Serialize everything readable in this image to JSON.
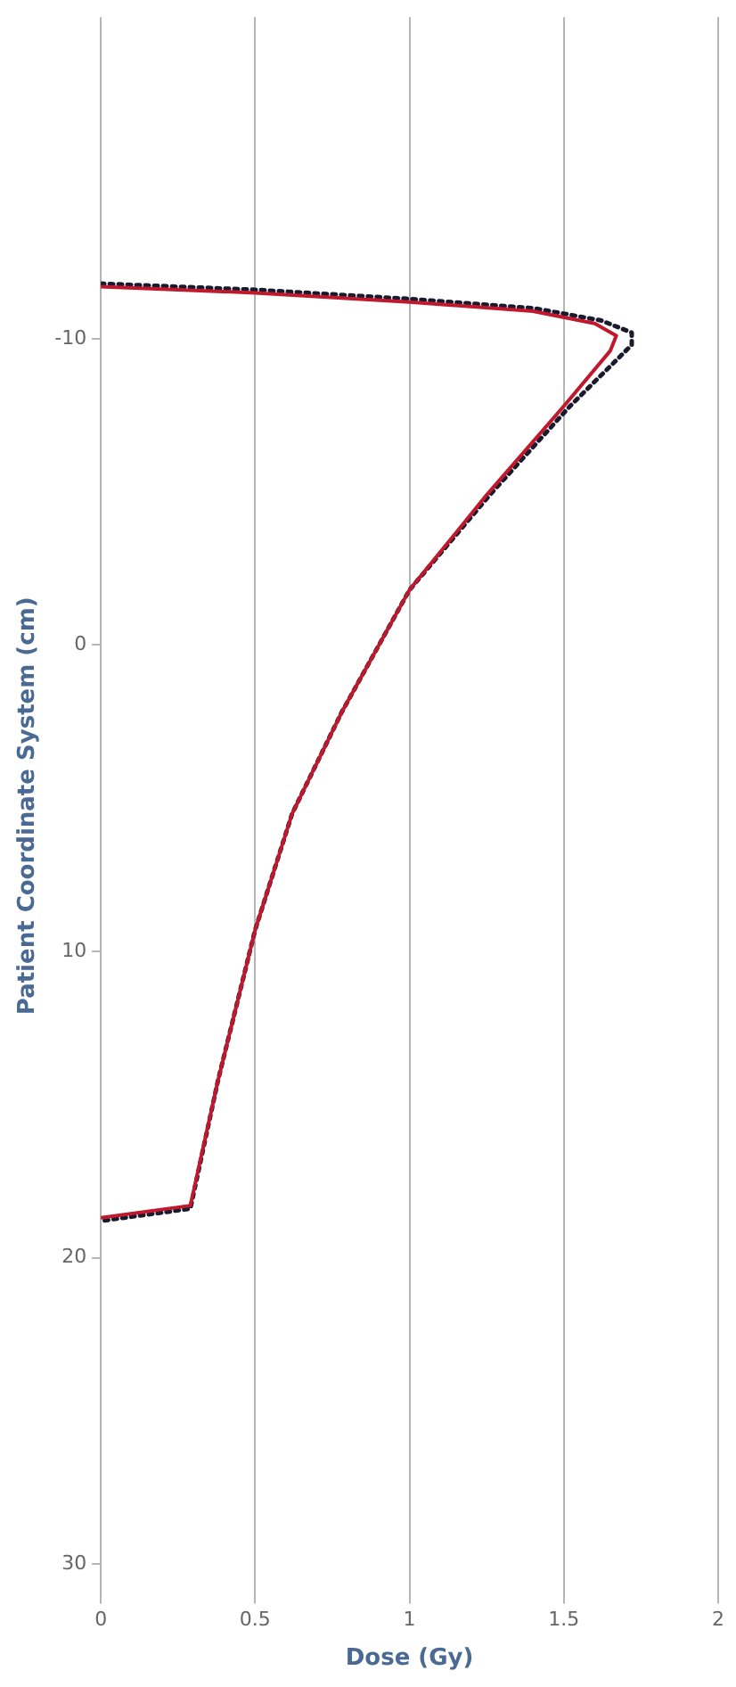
{
  "chart_data": {
    "type": "line",
    "xlabel": "Dose (Gy)",
    "ylabel": "Patient Coordinate System (cm)",
    "xlim": [
      0,
      2
    ],
    "xticks": [
      0,
      0.5,
      1,
      1.5,
      2
    ],
    "ylim": [
      31,
      -20.5
    ],
    "yticks": [
      -10,
      0,
      10,
      20,
      30
    ],
    "grid": "x",
    "legend": false,
    "marker": "none",
    "series": [
      {
        "color": "#c0182c",
        "line_style": "solid",
        "x": [
          0,
          0.5,
          1,
          1.4,
          1.6,
          1.67,
          1.65,
          1.5,
          1.25,
          1.0,
          0.78,
          0.62,
          0.5,
          0.38,
          0.29,
          0
        ],
        "values": [
          -11.7,
          -11.5,
          -11.2,
          -10.9,
          -10.5,
          -10.1,
          -9.6,
          -7.8,
          -4.9,
          -1.8,
          2.2,
          5.5,
          9.3,
          14.2,
          18.3,
          18.7
        ]
      },
      {
        "color": "#1a1a2e",
        "line_style": "dotted",
        "x": [
          0,
          0.5,
          1,
          1.4,
          1.62,
          1.72,
          1.72,
          1.52,
          1.26,
          1.0,
          0.78,
          0.62,
          0.5,
          0.38,
          0.29,
          0
        ],
        "values": [
          -11.8,
          -11.6,
          -11.3,
          -11.0,
          -10.6,
          -10.2,
          -9.8,
          -7.8,
          -4.9,
          -1.8,
          2.2,
          5.5,
          9.3,
          14.2,
          18.4,
          18.8
        ]
      }
    ]
  }
}
